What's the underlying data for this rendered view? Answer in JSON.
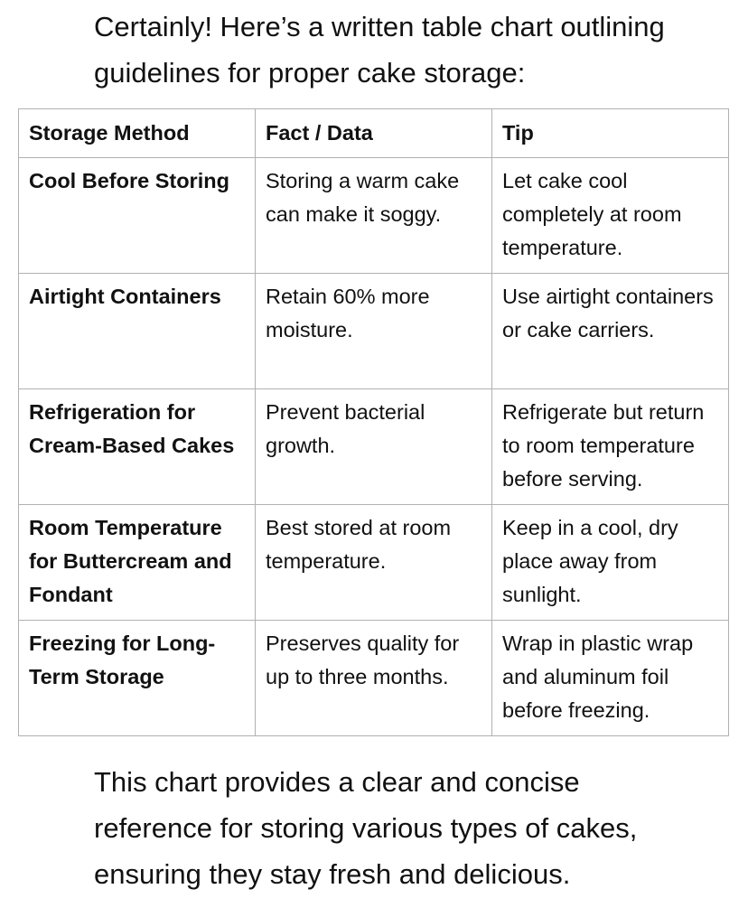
{
  "message": {
    "intro": "Certainly! Here’s a written table chart outlining guidelines for proper cake storage:",
    "outro": "This chart provides a clear and concise reference for storing various types of cakes, ensuring they stay fresh and delicious."
  },
  "table": {
    "headers": [
      "Storage Method",
      "Fact / Data",
      "Tip"
    ],
    "rows": [
      [
        "Cool Before Storing",
        "Storing a warm cake can make it soggy.",
        "Let cake cool completely at room temperature."
      ],
      [
        "Airtight Containers",
        "Retain 60% more moisture.",
        "Use airtight containers or cake carriers."
      ],
      [
        "Refrigeration for Cream-Based Cakes",
        "Prevent bacterial growth.",
        "Refrigerate but return to room temperature before serving."
      ],
      [
        "Room Temperature for Buttercream and Fondant",
        "Best stored at room temperature.",
        "Keep in a cool, dry place away from sunlight."
      ],
      [
        "Freezing for Long-Term Storage",
        "Preserves quality for up to three months.",
        "Wrap in plastic wrap and aluminum foil before freezing."
      ]
    ]
  },
  "colors": {
    "text": "#111111",
    "table_border": "#b1b1b1",
    "background": "#ffffff"
  }
}
